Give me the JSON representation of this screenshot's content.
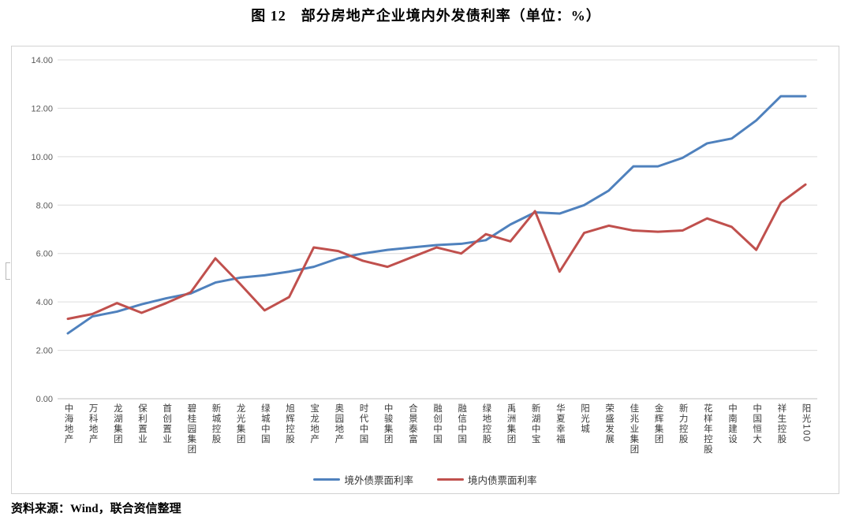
{
  "page": {
    "title": "图 12　部分房地产企业境内外发债利率（单位：%）",
    "source_note": "资料来源：Wind，联合资信整理"
  },
  "chart_data": {
    "type": "line",
    "title": "图 12　部分房地产企业境内外发债利率（单位：%）",
    "categories": [
      "中海地产",
      "万科地产",
      "龙湖集团",
      "保利置业",
      "首创置业",
      "碧桂园集团",
      "新城控股",
      "龙光集团",
      "绿城中国",
      "旭辉控股",
      "宝龙地产",
      "奥园地产",
      "时代中国",
      "中骏集团",
      "合景泰富",
      "融创中国",
      "融信中国",
      "绿地控股",
      "禹洲集团",
      "新湖中宝",
      "华夏幸福",
      "阳光城",
      "荣盛发展",
      "佳兆业集团",
      "金辉集团",
      "新力控股",
      "花样年控股",
      "中南建设",
      "中国恒大",
      "祥生控股",
      "阳光100"
    ],
    "series": [
      {
        "name": "境外债票面利率",
        "color": "#4F81BD",
        "values": [
          2.7,
          3.4,
          3.6,
          3.9,
          4.15,
          4.35,
          4.8,
          5.0,
          5.1,
          5.25,
          5.45,
          5.8,
          6.0,
          6.15,
          6.25,
          6.35,
          6.4,
          6.55,
          7.2,
          7.7,
          7.65,
          8.0,
          8.6,
          9.6,
          9.6,
          9.95,
          10.55,
          10.75,
          11.5,
          12.5,
          12.5
        ]
      },
      {
        "name": "境内债票面利率",
        "color": "#C0504D",
        "values": [
          3.3,
          3.5,
          3.95,
          3.55,
          3.95,
          4.4,
          5.8,
          4.75,
          3.65,
          4.2,
          6.25,
          6.1,
          5.7,
          5.45,
          5.85,
          6.25,
          6.0,
          6.8,
          6.5,
          7.75,
          5.25,
          6.85,
          7.15,
          6.95,
          6.9,
          6.95,
          7.45,
          7.1,
          6.15,
          8.1,
          8.85
        ]
      }
    ],
    "xlabel": "",
    "ylabel": "",
    "ylim": [
      0,
      14
    ],
    "yticks": [
      "0.00",
      "2.00",
      "4.00",
      "6.00",
      "8.00",
      "10.00",
      "12.00",
      "14.00"
    ],
    "grid": true,
    "legend_position": "bottom",
    "gridline_color": "#dcdcdc",
    "axis_line_color": "#c0c0c0",
    "tick_label_color": "#595959"
  }
}
